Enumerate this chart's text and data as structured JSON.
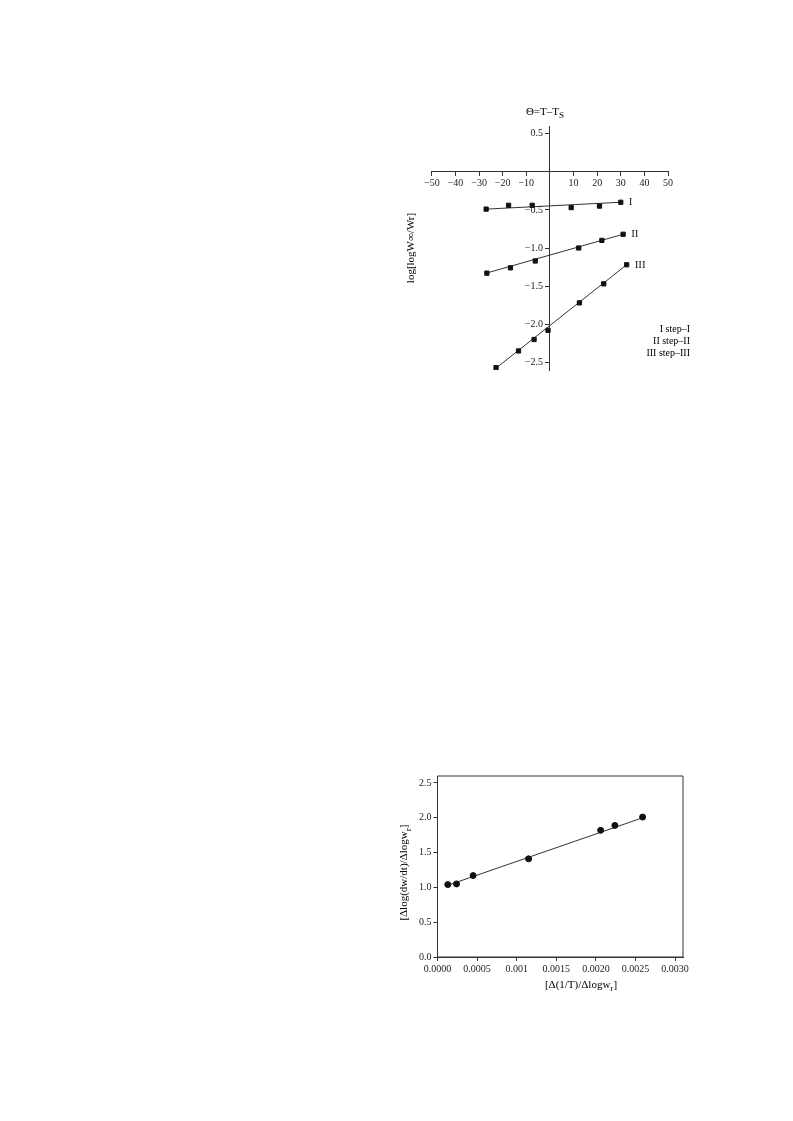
{
  "chart_data": [
    {
      "type": "scatter",
      "title": "Θ=T–T$_{S}$",
      "ylabel": "log[logW∞/Wr]",
      "marker": "square",
      "grid": false,
      "legend": false,
      "xlim": [
        -50,
        50
      ],
      "xticks": [
        {
          "value": -50,
          "label": "−50"
        },
        {
          "value": -40,
          "label": "−40"
        },
        {
          "value": -30,
          "label": "−30"
        },
        {
          "value": -20,
          "label": "−20"
        },
        {
          "value": -10,
          "label": "−10"
        },
        10,
        20,
        30,
        40,
        50
      ],
      "ylim": [
        -2.6,
        0.6
      ],
      "yticks": [
        0.5,
        {
          "value": -0.5,
          "label": "−0.5"
        },
        {
          "value": -1.0,
          "label": "−1.0"
        },
        {
          "value": -1.5,
          "label": "−1.5"
        },
        {
          "value": -2.0,
          "label": "−2.0"
        },
        {
          "value": -2.5,
          "label": "−2.5"
        }
      ],
      "annotations": [
        "I  step–I",
        "II  step–II",
        "III  step–III"
      ],
      "series": [
        {
          "name": "I",
          "color": "#111111",
          "x": [
            -27,
            -17.5,
            -7.5,
            9,
            21,
            30
          ],
          "values": [
            -0.49,
            -0.44,
            -0.44,
            -0.47,
            -0.45,
            -0.4
          ]
        },
        {
          "name": "II",
          "color": "#111111",
          "x": [
            -26.7,
            -16.7,
            -6.2,
            12.2,
            22,
            31
          ],
          "values": [
            -1.33,
            -1.26,
            -1.17,
            -1.0,
            -0.9,
            -0.82
          ]
        },
        {
          "name": "III",
          "color": "#111111",
          "x": [
            -22.8,
            -13.3,
            -6.7,
            -0.8,
            12.5,
            22.8,
            32.5
          ],
          "values": [
            -2.57,
            -2.35,
            -2.2,
            -2.08,
            -1.72,
            -1.47,
            -1.22
          ]
        },
        {
          "type": "line",
          "marker": "none",
          "color": "#333333",
          "x": [
            -27,
            30
          ],
          "values": [
            -0.49,
            -0.4
          ]
        },
        {
          "type": "line",
          "marker": "none",
          "color": "#333333",
          "x": [
            -27,
            31
          ],
          "values": [
            -1.33,
            -0.82
          ]
        },
        {
          "type": "line",
          "marker": "none",
          "color": "#333333",
          "x": [
            -23,
            32.5
          ],
          "values": [
            -2.58,
            -1.22
          ]
        }
      ]
    },
    {
      "type": "scatter",
      "xlabel": "[Δ(1/T)/Δlogw$_{r}$]",
      "ylabel": "[Δlog(dw/dt)/Δlogw$_{r}$]",
      "marker": "circle",
      "grid": false,
      "legend": false,
      "xlim": [
        0,
        0.0031
      ],
      "xticks": [
        {
          "value": 0,
          "label": "0.0000"
        },
        {
          "value": 0.0005,
          "label": "0.0005"
        },
        0.001,
        0.0015,
        {
          "value": 0.002,
          "label": "0.0020"
        },
        {
          "value": 0.0025,
          "label": "0.0025"
        },
        {
          "value": 0.003,
          "label": "0.0030"
        }
      ],
      "ylim": [
        0,
        2.6
      ],
      "yticks": [
        {
          "value": 0,
          "label": "0.0"
        },
        0.5,
        {
          "value": 1,
          "label": "1.0"
        },
        1.5,
        {
          "value": 2,
          "label": "2.0"
        },
        2.5
      ],
      "series": [
        {
          "color": "#111111",
          "x": [
            0.00013,
            0.00024,
            0.00045,
            0.00115,
            0.00206,
            0.00224,
            0.00259
          ],
          "values": [
            1.04,
            1.05,
            1.17,
            1.41,
            1.82,
            1.89,
            2.01
          ]
        },
        {
          "type": "line",
          "marker": "none",
          "color": "#333333",
          "x": [
            0.00013,
            0.00259
          ],
          "values": [
            1.03,
            2.0
          ]
        }
      ]
    }
  ]
}
